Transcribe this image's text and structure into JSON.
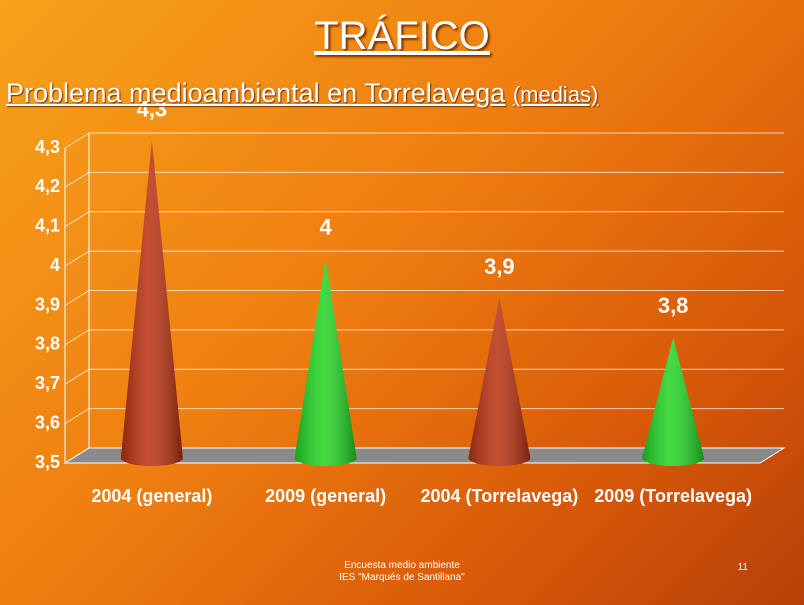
{
  "header": {
    "title": "TRÁFICO",
    "subtitle": "Problema medioambiental en Torrelavega",
    "subtitle_note": "(medias)"
  },
  "chart_data": {
    "type": "cone",
    "categories": [
      "2004 (general)",
      "2009 (general)",
      "2004 (Torrelavega)",
      "2009 (Torrelavega)"
    ],
    "values": [
      4.3,
      4,
      3.9,
      3.8
    ],
    "value_labels": [
      "4,3",
      "4",
      "3,9",
      "3,8"
    ],
    "colors": [
      "#b8300e",
      "#22d422",
      "#b8300e",
      "#22d422"
    ],
    "ylim": [
      3.5,
      4.3
    ],
    "yticks": [
      {
        "value": 3.5,
        "label": "3,5"
      },
      {
        "value": 3.6,
        "label": "3,6"
      },
      {
        "value": 3.7,
        "label": "3,7"
      },
      {
        "value": 3.8,
        "label": "3,8"
      },
      {
        "value": 3.9,
        "label": "3,9"
      },
      4,
      {
        "value": 4.1,
        "label": "4,1"
      },
      {
        "value": 4.2,
        "label": "4,2"
      },
      {
        "value": 4.3,
        "label": "4,3"
      }
    ],
    "grid": true
  },
  "footer": {
    "lines": [
      "Encuesta medio ambiente",
      "IES \"Marqués de Santillana\""
    ],
    "page": "11"
  }
}
